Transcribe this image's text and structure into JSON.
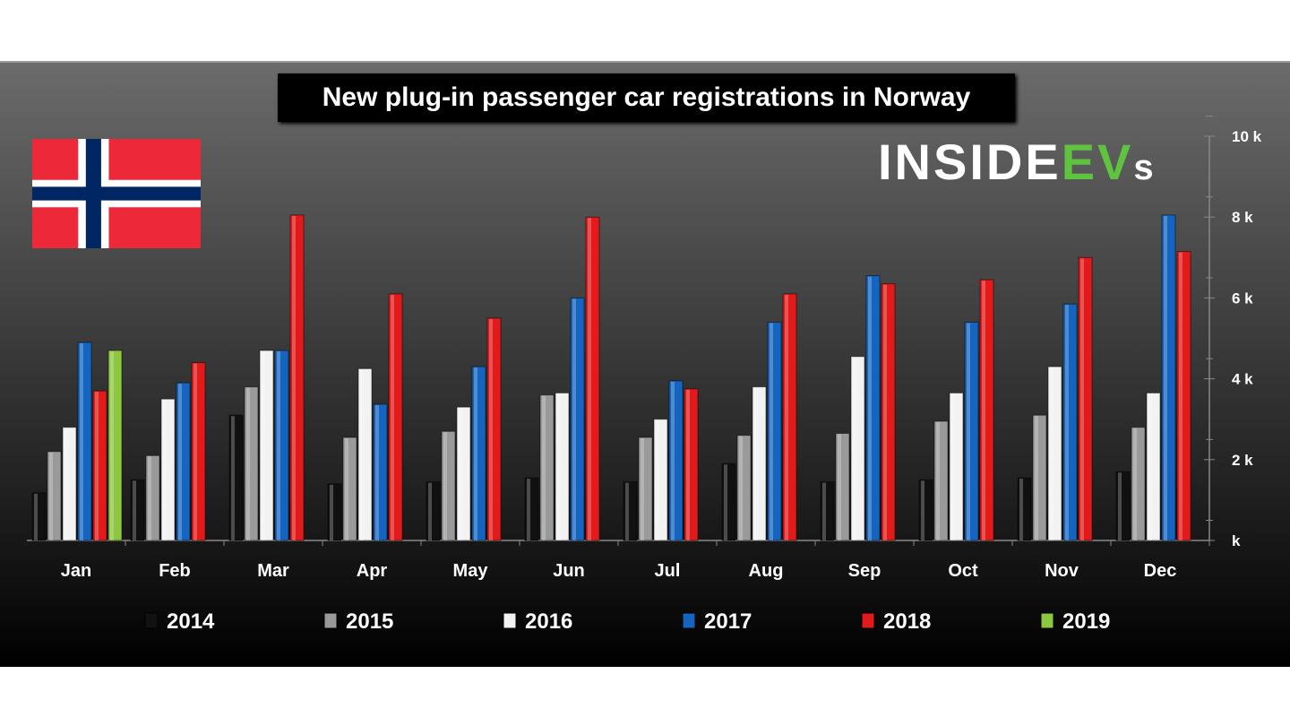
{
  "chart_data": {
    "type": "bar",
    "title": "New plug-in passenger car registrations in Norway",
    "categories": [
      "Jan",
      "Feb",
      "Mar",
      "Apr",
      "May",
      "Jun",
      "Jul",
      "Aug",
      "Sep",
      "Oct",
      "Nov",
      "Dec"
    ],
    "ylim": [
      0,
      10000
    ],
    "yticks": [
      {
        "v": 0,
        "label": "k"
      },
      {
        "v": 2000,
        "label": "2 k"
      },
      {
        "v": 4000,
        "label": "4 k"
      },
      {
        "v": 6000,
        "label": "6 k"
      },
      {
        "v": 8000,
        "label": "8 k"
      },
      {
        "v": 10000,
        "label": "10 k"
      }
    ],
    "legend_position": "bottom",
    "series": [
      {
        "name": "2014",
        "color": "#111111",
        "values": [
          1180,
          1500,
          3100,
          1400,
          1450,
          1550,
          1450,
          1900,
          1450,
          1500,
          1550,
          1700
        ]
      },
      {
        "name": "2015",
        "color": "#9a9a9a",
        "values": [
          2200,
          2100,
          3800,
          2550,
          2700,
          3600,
          2550,
          2600,
          2650,
          2950,
          3100,
          2800
        ]
      },
      {
        "name": "2016",
        "color": "#f2f2f2",
        "values": [
          2800,
          3500,
          4700,
          4250,
          3300,
          3650,
          3000,
          3800,
          4550,
          3650,
          4300,
          3650
        ]
      },
      {
        "name": "2017",
        "color": "#1565c0",
        "values": [
          4900,
          3900,
          4700,
          3370,
          4300,
          6000,
          3950,
          5400,
          6550,
          5400,
          5850,
          8050
        ]
      },
      {
        "name": "2018",
        "color": "#e31a1a",
        "values": [
          3700,
          4400,
          8050,
          6100,
          5500,
          8000,
          3750,
          6100,
          6350,
          6450,
          7000,
          7150
        ]
      },
      {
        "name": "2019",
        "color": "#8dc63f",
        "values": [
          4700,
          null,
          null,
          null,
          null,
          null,
          null,
          null,
          null,
          null,
          null,
          null
        ]
      }
    ]
  },
  "logo": {
    "a": "INSIDE",
    "b": "EV",
    "c": "s"
  }
}
